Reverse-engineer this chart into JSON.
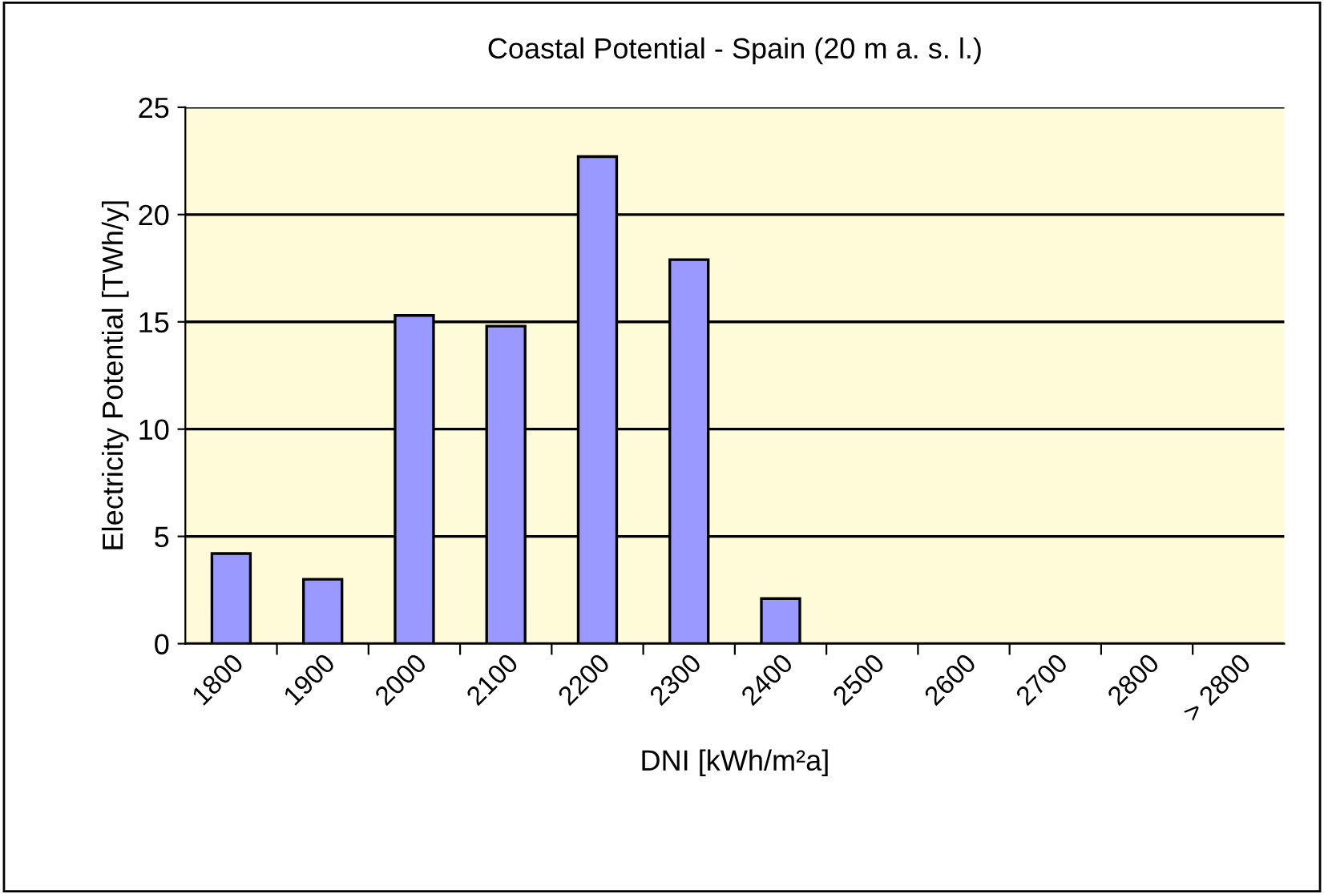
{
  "chart_data": {
    "type": "bar",
    "title": "Coastal Potential - Spain (20 m a. s. l.)",
    "xlabel": "DNI [kWh/m²a]",
    "ylabel": "Electricity Potential [TWh/y]",
    "categories": [
      "1800",
      "1900",
      "2000",
      "2100",
      "2200",
      "2300",
      "2400",
      "2500",
      "2600",
      "2700",
      "2800",
      "> 2800"
    ],
    "values": [
      4.2,
      3.0,
      15.3,
      14.8,
      22.7,
      17.9,
      2.1,
      null,
      null,
      null,
      null,
      null
    ],
    "color": "#9999ff",
    "ylim": [
      0,
      25
    ],
    "yticks": [
      0,
      5,
      10,
      15,
      20,
      25
    ],
    "grid": "y",
    "legend": false
  }
}
